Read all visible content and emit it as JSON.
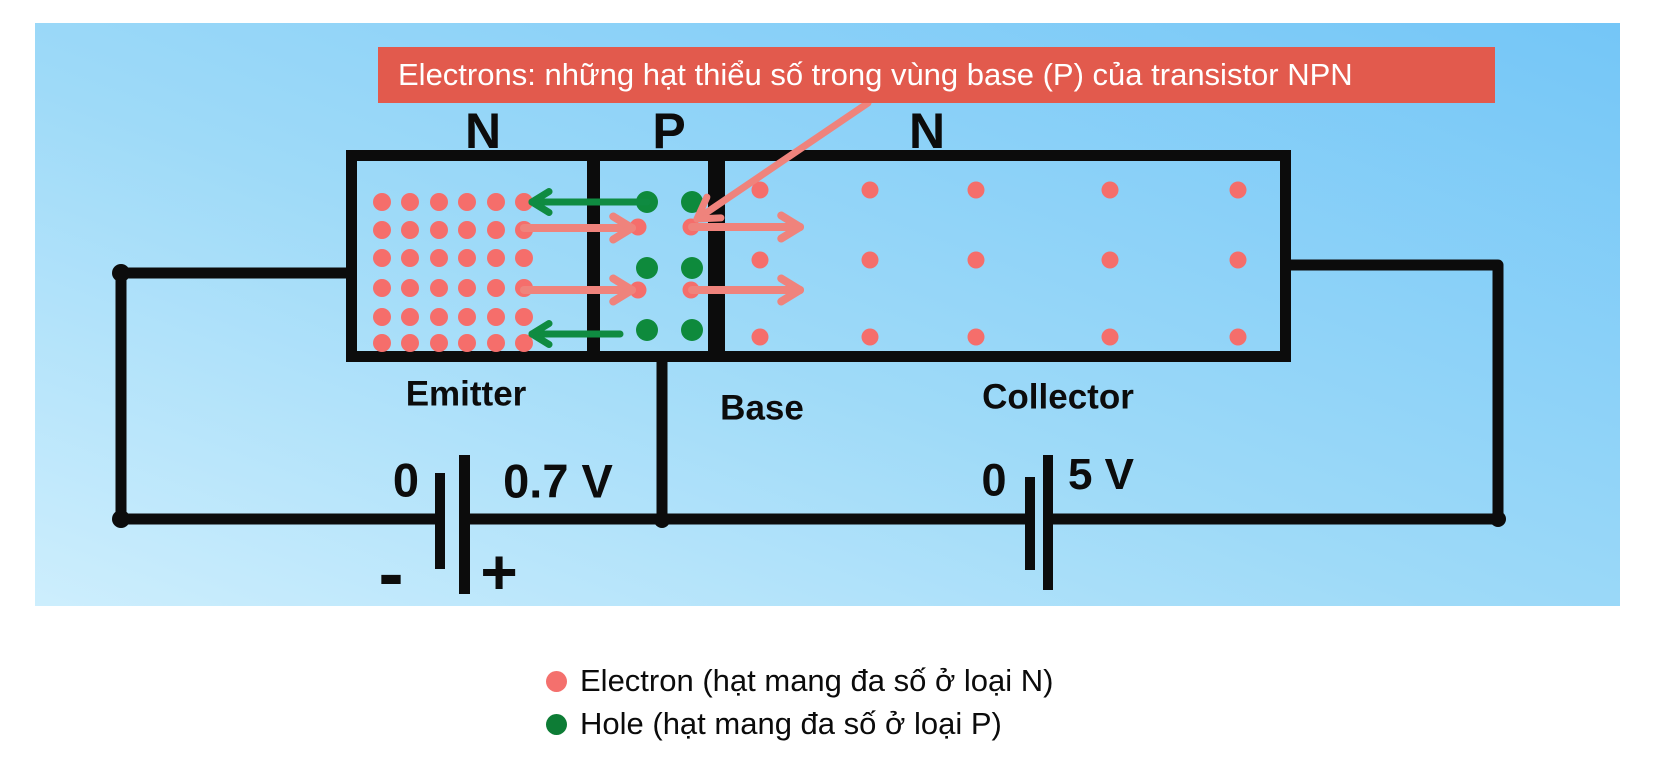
{
  "banner": {
    "text": "Electrons: những hạt thiểu số trong vùng base (P) của transistor NPN"
  },
  "regions": {
    "n_left": "N",
    "p": "P",
    "n_right": "N",
    "emitter": "Emitter",
    "base": "Base",
    "collector": "Collector"
  },
  "batteries": {
    "emitter": {
      "left_value": "0",
      "right_value": "0.7 V",
      "minus": "-",
      "plus": "+"
    },
    "collector": {
      "left_value": "0",
      "right_value": "5 V"
    }
  },
  "legend": {
    "items": [
      {
        "label": "Electron (hạt mang đa số ở loại N)",
        "color": "#f4706d"
      },
      {
        "label": "Hole (hạt mang đa số ở loại P)",
        "color": "#0d7c35"
      }
    ]
  },
  "colors": {
    "electron": "#f56e6b",
    "hole": "#0e8a3c",
    "arrow_pink": "#ef837c",
    "arrow_green": "#0f8b41",
    "wire": "#0c0c0c",
    "banner_bg": "#e25a4d"
  },
  "particles": {
    "emitter_grid": {
      "cols": [
        347,
        375,
        404,
        432,
        461,
        489
      ],
      "rows": [
        179,
        207,
        235,
        265,
        294,
        320
      ],
      "r": 9,
      "color_key": "electron"
    },
    "collector_grid": {
      "cols": [
        725,
        835,
        941,
        1075,
        1203
      ],
      "rows": [
        167,
        237,
        314
      ],
      "r": 8.5,
      "color_key": "electron"
    },
    "base_holes": {
      "points": [
        [
          612,
          179
        ],
        [
          657,
          179
        ],
        [
          612,
          245
        ],
        [
          657,
          245
        ],
        [
          612,
          307
        ],
        [
          657,
          307
        ]
      ],
      "r": 11,
      "color_key": "hole"
    },
    "base_electrons": {
      "points": [
        [
          603,
          204
        ],
        [
          656,
          204
        ],
        [
          603,
          267
        ],
        [
          656,
          267
        ]
      ],
      "r": 8.5,
      "color_key": "electron"
    }
  },
  "arrows": [
    {
      "name": "hole-injection-top",
      "from": [
        612,
        179
      ],
      "to": [
        497,
        179
      ],
      "color_key": "arrow_green",
      "width": 7,
      "head": 20
    },
    {
      "name": "electron-into-base-top",
      "from": [
        489,
        205
      ],
      "to": [
        597,
        205
      ],
      "color_key": "arrow_pink",
      "width": 8,
      "head": 22
    },
    {
      "name": "electron-into-collector-top",
      "from": [
        657,
        204
      ],
      "to": [
        765,
        204
      ],
      "color_key": "arrow_pink",
      "width": 8,
      "head": 22
    },
    {
      "name": "electron-into-base-bottom",
      "from": [
        489,
        267
      ],
      "to": [
        597,
        267
      ],
      "color_key": "arrow_pink",
      "width": 8,
      "head": 22
    },
    {
      "name": "electron-into-collector-bottom",
      "from": [
        657,
        267
      ],
      "to": [
        765,
        267
      ],
      "color_key": "arrow_pink",
      "width": 8,
      "head": 22
    },
    {
      "name": "hole-injection-bottom",
      "from": [
        585,
        311
      ],
      "to": [
        497,
        311
      ],
      "color_key": "arrow_green",
      "width": 7,
      "head": 20
    },
    {
      "name": "banner-pointer",
      "from": [
        833,
        80
      ],
      "to": [
        662,
        196
      ],
      "color_key": "arrow_pink",
      "width": 7,
      "head": 24
    }
  ]
}
